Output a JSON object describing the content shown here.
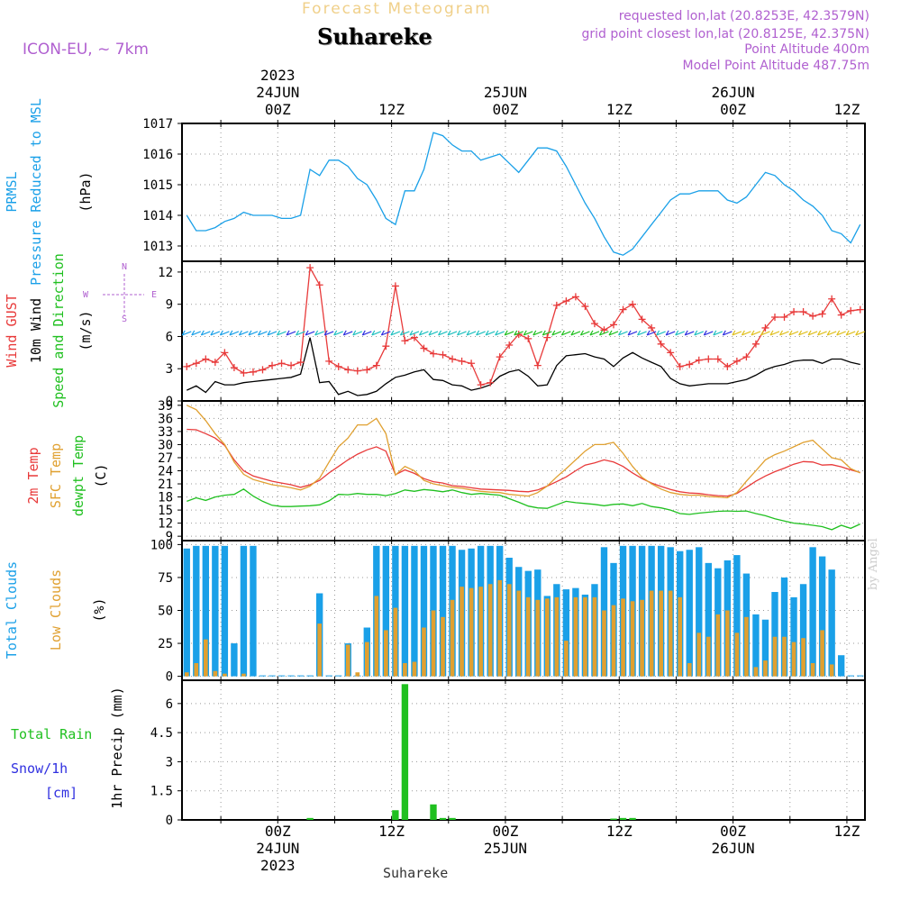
{
  "header": {
    "title": "Forecast Meteogram",
    "station": "Suhareke",
    "model": "ICON-EU, ~ 7km",
    "requested": "requested lon,lat (20.8253E, 42.3579N)",
    "grid_point": "grid point closest lon,lat (20.8125E, 42.375N)",
    "point_altitude": "Point Altitude 400m",
    "model_altitude": "Model Point Altitude 487.75m"
  },
  "footer_label": "Suhareke",
  "credit": "by Angel",
  "colors": {
    "blue": "#1aa0e8",
    "red": "#e83a3a",
    "orange": "#e0a030",
    "green": "#20c020",
    "black": "#000000",
    "purple": "#b060d0",
    "snow": "#3030e0"
  },
  "chart_data": [
    {
      "id": "pressure",
      "type": "line",
      "label_lines": [
        {
          "text": "PRMSL",
          "color": "#1aa0e8"
        },
        {
          "text": "Pressure Reduced to MSL",
          "color": "#1aa0e8"
        },
        {
          "text": "(hPa)",
          "color": "#000000"
        }
      ],
      "ylim": [
        1012.5,
        1017
      ],
      "yticks": [
        1013,
        1014,
        1015,
        1016,
        1017
      ],
      "series": [
        {
          "color": "#1aa0e8",
          "values": [
            1014.0,
            1013.5,
            1013.5,
            1013.6,
            1013.8,
            1013.9,
            1014.1,
            1014.0,
            1014.0,
            1014.0,
            1013.9,
            1013.9,
            1014.0,
            1015.5,
            1015.3,
            1015.8,
            1015.8,
            1015.6,
            1015.2,
            1015.0,
            1014.5,
            1013.9,
            1013.7,
            1014.8,
            1014.8,
            1015.5,
            1016.7,
            1016.6,
            1016.3,
            1016.1,
            1016.1,
            1015.8,
            1015.9,
            1016.0,
            1015.7,
            1015.4,
            1015.8,
            1016.2,
            1016.2,
            1016.1,
            1015.6,
            1015.0,
            1014.4,
            1013.9,
            1013.3,
            1012.8,
            1012.7,
            1012.9,
            1013.3,
            1013.7,
            1014.1,
            1014.5,
            1014.7,
            1014.7,
            1014.8,
            1014.8,
            1014.8,
            1014.5,
            1014.4,
            1014.6,
            1015.0,
            1015.4,
            1015.3,
            1015.0,
            1014.8,
            1014.5,
            1014.3,
            1014.0,
            1013.5,
            1013.4,
            1013.1,
            1013.7
          ]
        }
      ]
    },
    {
      "id": "wind",
      "type": "line",
      "label_lines": [
        {
          "text": "Wind GUST",
          "color": "#e83a3a"
        },
        {
          "text": "10m Wind",
          "color": "#000000"
        },
        {
          "text": "Speed and Direction",
          "color": "#20c020"
        },
        {
          "text": "(m/s)",
          "color": "#000000"
        }
      ],
      "compass": {
        "n": "N",
        "s": "S",
        "w": "W",
        "e": "E"
      },
      "ylim": [
        0,
        13
      ],
      "yticks": [
        0,
        3,
        6,
        9,
        12
      ],
      "series": [
        {
          "name": "Wind GUST",
          "color": "#e83a3a",
          "markers": "plus",
          "values": [
            3.2,
            3.5,
            3.9,
            3.6,
            4.5,
            3.1,
            2.6,
            2.7,
            2.9,
            3.3,
            3.5,
            3.3,
            3.6,
            12.4,
            10.8,
            3.7,
            3.2,
            2.9,
            2.8,
            2.9,
            3.3,
            5.1,
            10.7,
            5.6,
            5.9,
            4.9,
            4.4,
            4.3,
            3.9,
            3.7,
            3.5,
            1.5,
            1.7,
            4.1,
            5.2,
            6.2,
            5.8,
            3.3,
            5.9,
            8.9,
            9.3,
            9.7,
            8.8,
            7.2,
            6.6,
            7.1,
            8.5,
            9.0,
            7.6,
            6.8,
            5.3,
            4.5,
            3.2,
            3.4,
            3.8,
            3.9,
            3.9,
            3.2,
            3.7,
            4.1,
            5.3,
            6.8,
            7.8,
            7.8,
            8.3,
            8.3,
            7.9,
            8.1,
            9.5,
            8.0,
            8.4,
            8.5
          ]
        },
        {
          "name": "10m Wind",
          "color": "#000000",
          "values": [
            1.0,
            1.4,
            0.8,
            1.8,
            1.5,
            1.5,
            1.7,
            1.8,
            1.9,
            2.0,
            2.1,
            2.2,
            2.5,
            5.9,
            1.7,
            1.8,
            0.6,
            0.9,
            0.5,
            0.6,
            0.9,
            1.6,
            2.2,
            2.4,
            2.7,
            2.9,
            2.0,
            1.9,
            1.5,
            1.4,
            1.0,
            1.2,
            1.5,
            2.3,
            2.7,
            2.9,
            2.3,
            1.4,
            1.5,
            3.3,
            4.2,
            4.3,
            4.4,
            4.1,
            3.9,
            3.2,
            4.0,
            4.5,
            4.0,
            3.6,
            3.2,
            2.1,
            1.6,
            1.4,
            1.5,
            1.6,
            1.6,
            1.6,
            1.8,
            2.0,
            2.4,
            2.9,
            3.2,
            3.4,
            3.7,
            3.8,
            3.8,
            3.5,
            3.9,
            3.9,
            3.6,
            3.4
          ]
        }
      ]
    },
    {
      "id": "temperature",
      "type": "line",
      "label_lines": [
        {
          "text": "2m Temp",
          "color": "#e83a3a"
        },
        {
          "text": "SFC Temp",
          "color": "#e0a030"
        },
        {
          "text": "dewpt Temp",
          "color": "#20c020"
        },
        {
          "text": "(C)",
          "color": "#000000"
        }
      ],
      "ylim": [
        8,
        40
      ],
      "yticks": [
        9,
        12,
        15,
        18,
        21,
        24,
        27,
        30,
        33,
        36,
        39
      ],
      "series": [
        {
          "name": "2m Temp",
          "color": "#e83a3a",
          "values": [
            33.5,
            33.4,
            32.5,
            31.5,
            29.8,
            26.5,
            24.0,
            22.8,
            22.2,
            21.6,
            21.2,
            20.8,
            20.2,
            20.8,
            21.8,
            23.5,
            25.0,
            26.5,
            27.8,
            28.8,
            29.5,
            28.5,
            23.1,
            24.2,
            23.4,
            22.2,
            21.5,
            21.2,
            20.6,
            20.4,
            20.1,
            19.8,
            19.7,
            19.6,
            19.5,
            19.3,
            19.2,
            19.6,
            20.5,
            21.5,
            22.6,
            24.0,
            25.3,
            25.8,
            26.5,
            26.0,
            25.0,
            23.5,
            22.2,
            21.2,
            20.4,
            19.7,
            19.2,
            18.9,
            18.8,
            18.5,
            18.3,
            18.2,
            18.8,
            20.2,
            21.6,
            22.8,
            23.8,
            24.6,
            25.5,
            26.1,
            26.0,
            25.3,
            25.4,
            24.9,
            24.2,
            23.6
          ]
        },
        {
          "name": "SFC Temp",
          "color": "#e0a030",
          "values": [
            39.0,
            38.0,
            35.5,
            32.5,
            30.0,
            26.0,
            23.2,
            22.0,
            21.4,
            20.8,
            20.5,
            20.1,
            19.6,
            20.5,
            22.3,
            26.0,
            29.5,
            31.5,
            34.5,
            34.5,
            36.0,
            32.5,
            23.0,
            25.0,
            24.0,
            21.8,
            21.0,
            20.6,
            20.2,
            20.0,
            19.6,
            19.3,
            19.1,
            19.0,
            18.6,
            18.4,
            18.2,
            19.0,
            20.5,
            22.6,
            24.5,
            26.5,
            28.5,
            30.0,
            30.0,
            30.5,
            28.0,
            25.0,
            22.5,
            21.0,
            19.8,
            19.0,
            18.6,
            18.4,
            18.4,
            18.1,
            18.0,
            17.8,
            19.0,
            21.6,
            24.0,
            26.5,
            27.7,
            28.5,
            29.5,
            30.5,
            31.0,
            29.0,
            27.0,
            26.5,
            24.5,
            23.5
          ]
        },
        {
          "name": "dewpt Temp",
          "color": "#20c020",
          "values": [
            17.0,
            17.8,
            17.2,
            18.0,
            18.4,
            18.6,
            19.8,
            18.2,
            17.0,
            16.1,
            15.8,
            15.8,
            15.9,
            16.0,
            16.2,
            17.1,
            18.6,
            18.5,
            18.8,
            18.6,
            18.6,
            18.3,
            18.8,
            19.6,
            19.3,
            19.7,
            19.5,
            19.2,
            19.6,
            19.0,
            18.6,
            18.8,
            18.6,
            18.4,
            17.6,
            16.8,
            15.9,
            15.5,
            15.4,
            16.2,
            17.0,
            16.7,
            16.5,
            16.3,
            16.0,
            16.3,
            16.4,
            16.0,
            16.5,
            15.8,
            15.5,
            15.0,
            14.2,
            14.0,
            14.3,
            14.5,
            14.7,
            14.8,
            14.7,
            14.8,
            14.2,
            13.7,
            13.0,
            12.5,
            12.0,
            11.8,
            11.5,
            11.2,
            10.5,
            11.5,
            10.8,
            11.8
          ]
        }
      ]
    },
    {
      "id": "clouds",
      "type": "bar",
      "label_lines": [
        {
          "text": "Total Clouds",
          "color": "#1aa0e8"
        },
        {
          "text": "Low Clouds",
          "color": "#e0a030"
        },
        {
          "text": "(%)",
          "color": "#000000"
        }
      ],
      "ylim": [
        -3,
        103
      ],
      "yticks": [
        0,
        25,
        50,
        75,
        100
      ],
      "series": [
        {
          "name": "Total Clouds",
          "color": "#1aa0e8",
          "values": [
            97,
            99,
            99,
            99,
            99,
            25,
            99,
            99,
            0,
            0,
            0,
            0,
            0,
            0,
            63,
            0,
            0,
            25,
            0,
            37,
            99,
            99,
            99,
            99,
            99,
            99,
            99,
            99,
            99,
            96,
            97,
            99,
            99,
            99,
            90,
            83,
            80,
            81,
            61,
            70,
            66,
            67,
            62,
            70,
            98,
            86,
            99,
            99,
            99,
            99,
            99,
            98,
            95,
            96,
            98,
            86,
            82,
            88,
            92,
            78,
            47,
            43,
            64,
            75,
            60,
            70,
            98,
            91,
            81,
            16,
            0,
            0
          ]
        },
        {
          "name": "Low Clouds",
          "color": "#e0a030",
          "values": [
            3,
            10,
            28,
            4,
            2,
            0,
            2,
            0,
            0,
            0,
            0,
            0,
            0,
            0,
            40,
            0,
            0,
            24,
            3,
            26,
            61,
            35,
            52,
            10,
            11,
            37,
            50,
            45,
            58,
            68,
            67,
            68,
            70,
            73,
            70,
            65,
            60,
            58,
            59,
            60,
            27,
            60,
            60,
            60,
            50,
            54,
            59,
            57,
            58,
            65,
            65,
            65,
            60,
            10,
            33,
            30,
            47,
            50,
            33,
            45,
            7,
            12,
            30,
            30,
            26,
            29,
            10,
            35,
            9,
            0,
            0,
            0
          ]
        }
      ]
    },
    {
      "id": "precip",
      "type": "bar",
      "label_lines": [
        {
          "text": "Total  Rain",
          "color": "#20c020"
        },
        {
          "text": "Snow/1h",
          "color": "#3030e0"
        },
        {
          "text": "[cm]",
          "color": "#3030e0"
        },
        {
          "text": "1hr Precip (mm)",
          "color": "#000000"
        }
      ],
      "ylim": [
        0,
        7.2
      ],
      "yticks": [
        0,
        1.5,
        3,
        4.5,
        6
      ],
      "bars": [
        {
          "index": 13,
          "value": 0.1
        },
        {
          "index": 22,
          "value": 0.5
        },
        {
          "index": 23,
          "value": 7.0
        },
        {
          "index": 26,
          "value": 0.8
        },
        {
          "index": 27,
          "value": 0.1
        },
        {
          "index": 28,
          "value": 0.1
        },
        {
          "index": 45,
          "value": 0.05
        },
        {
          "index": 46,
          "value": 0.1
        },
        {
          "index": 47,
          "value": 0.1
        }
      ],
      "color": "#20c020"
    }
  ],
  "time_axis": {
    "top_labels": [
      {
        "index": 10,
        "lines": [
          "2023",
          "24JUN",
          "00Z"
        ]
      },
      {
        "index": 22,
        "lines": [
          "12Z"
        ]
      },
      {
        "index": 34,
        "lines": [
          "25JUN",
          "00Z"
        ]
      },
      {
        "index": 46,
        "lines": [
          "12Z"
        ]
      },
      {
        "index": 58,
        "lines": [
          "26JUN",
          "00Z"
        ]
      },
      {
        "index": 70,
        "lines": [
          "12Z"
        ]
      }
    ],
    "bottom_labels": [
      {
        "index": 10,
        "lines": [
          "00Z",
          "24JUN",
          "2023"
        ]
      },
      {
        "index": 22,
        "lines": [
          "12Z"
        ]
      },
      {
        "index": 34,
        "lines": [
          "00Z",
          "25JUN"
        ]
      },
      {
        "index": 46,
        "lines": [
          "12Z"
        ]
      },
      {
        "index": 58,
        "lines": [
          "00Z",
          "26JUN"
        ]
      },
      {
        "index": 70,
        "lines": [
          "12Z"
        ]
      }
    ],
    "n_points": 72
  }
}
